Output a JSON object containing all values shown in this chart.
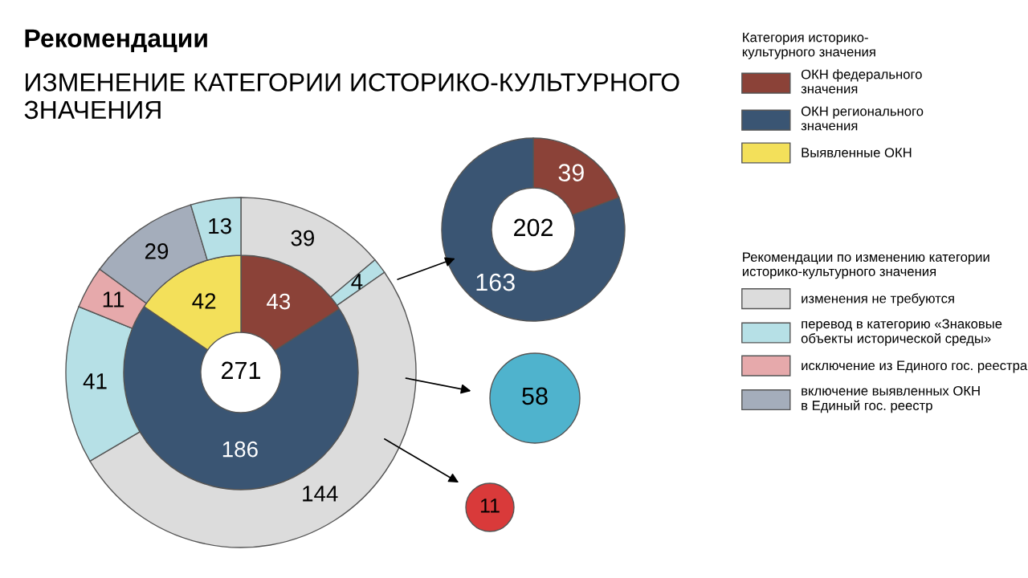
{
  "chart_data": [
    {
      "type": "donut",
      "title": "Рекомендации",
      "subtitle": "ИЗМЕНЕНИЕ КАТЕГОРИИ ИСТОРИКО-КУЛЬТУРНОГО\nЗНАЧЕНИЯ",
      "legend_title": "Категория историко-\nкультурного значения",
      "legend": "right",
      "data_labels": true,
      "annotations": [
        "271",
        "Рекомендации по изменению категории\nисторико-культурного значения"
      ],
      "categories": [
        "ОКН федерального\nзначения",
        "ОКН регионального\nзначения",
        "Выявленные ОКН",
        "изменения не требуются",
        "перевод в категорию «Знаковые\nобъекты исторической среды»",
        null,
        null,
        "исключение из Единого гос. реестра",
        "включение выявленных ОКН\nв Единый гос. реестр",
        null
      ],
      "series": [
        {
          "values": [
            43,
            186,
            42,
            null,
            null,
            null,
            null,
            null,
            null,
            null
          ],
          "colors": [
            "#8b4238",
            "#3a5573",
            "#f3e05a",
            null,
            null,
            null,
            null,
            null,
            null,
            null
          ]
        },
        {
          "values": [
            null,
            null,
            null,
            39,
            4,
            144,
            41,
            11,
            29,
            13
          ],
          "colors": [
            null,
            null,
            null,
            "#dcdcdc",
            "#b6e0e6",
            "#dcdcdc",
            "#b6e0e6",
            "#e6a9ab",
            "#a4adbb",
            "#b6e0e6"
          ]
        }
      ]
    },
    {
      "type": "donut",
      "categories": [
        null,
        null
      ],
      "values": [
        39,
        163
      ],
      "colors": [
        "#8b4238",
        "#3a5573"
      ],
      "data_labels": true,
      "annotations": [
        "202"
      ]
    },
    {
      "type": "other",
      "categories": [
        null,
        null
      ],
      "values": [
        58,
        11
      ],
      "colors": [
        "#4fb3cd",
        "#d93a3a"
      ],
      "data_labels": true
    }
  ]
}
